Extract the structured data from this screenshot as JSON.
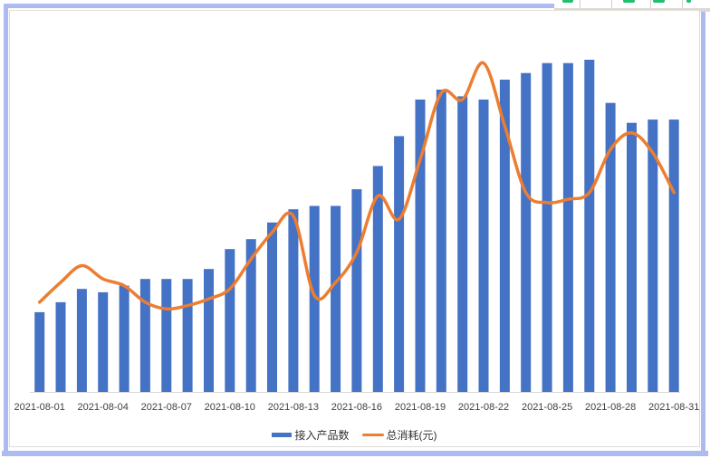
{
  "legend": {
    "bar_label": "接入产品数",
    "line_label": "总消耗(元)"
  },
  "colors": {
    "bar": "#4472C4",
    "line": "#ED7D31",
    "frame": "#AEBBF0",
    "axis_line": "#D9D9D9",
    "label_text": "#404040",
    "toolbar_green": "#22BF6E"
  },
  "chart_data": {
    "type": "combo",
    "title": "",
    "xlabel": "",
    "ylabel": "",
    "x": [
      "2021-08-01",
      "2021-08-02",
      "2021-08-03",
      "2021-08-04",
      "2021-08-05",
      "2021-08-06",
      "2021-08-07",
      "2021-08-08",
      "2021-08-09",
      "2021-08-10",
      "2021-08-11",
      "2021-08-12",
      "2021-08-13",
      "2021-08-14",
      "2021-08-15",
      "2021-08-16",
      "2021-08-17",
      "2021-08-18",
      "2021-08-19",
      "2021-08-20",
      "2021-08-21",
      "2021-08-22",
      "2021-08-23",
      "2021-08-24",
      "2021-08-25",
      "2021-08-26",
      "2021-08-27",
      "2021-08-28",
      "2021-08-29",
      "2021-08-30",
      "2021-08-31"
    ],
    "x_tick_labels": [
      "2021-08-01",
      "2021-08-04",
      "2021-08-07",
      "2021-08-10",
      "2021-08-13",
      "2021-08-16",
      "2021-08-19",
      "2021-08-22",
      "2021-08-25",
      "2021-08-28",
      "2021-08-31"
    ],
    "x_tick_step": 3,
    "series": [
      {
        "name": "接入产品数",
        "type": "bar",
        "color": "#4472C4",
        "values": [
          24,
          27,
          31,
          30,
          32,
          34,
          34,
          34,
          37,
          43,
          46,
          51,
          55,
          56,
          56,
          61,
          68,
          77,
          88,
          91,
          89,
          88,
          94,
          96,
          99,
          99,
          100,
          87,
          81,
          82,
          82
        ]
      },
      {
        "name": "总消耗(元)",
        "type": "line",
        "color": "#ED7D31",
        "values": [
          27,
          33,
          38,
          34,
          32,
          27,
          25,
          26,
          28,
          31,
          40,
          48,
          53,
          29,
          33,
          42,
          59,
          52,
          70,
          90,
          88,
          99,
          80,
          60,
          57,
          58,
          60,
          73,
          78,
          72,
          60
        ]
      }
    ],
    "value_scale": "relative (0-100 of tallest bar); value axis is hidden in chart",
    "ylim": [
      0,
      107
    ],
    "y_axis_visible": false,
    "gridlines": false,
    "legend_position": "bottom"
  }
}
